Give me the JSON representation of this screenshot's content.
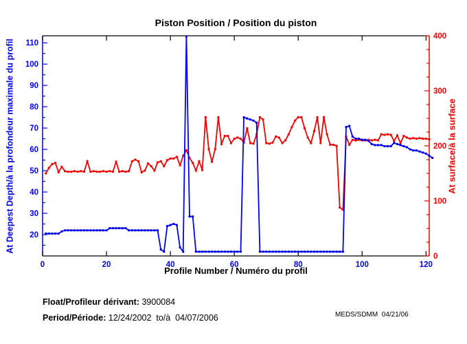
{
  "title": "Piston Position / Position du piston",
  "footer": {
    "float_label": "Float/Profileur dérivant:",
    "float_value": " 3900084",
    "period_label": "Period/Période:",
    "period_value": " 12/24/2002  to/à  04/07/2006",
    "credit": "MEDS/SDMM  04/21/06"
  },
  "chart_data": {
    "type": "line",
    "title": "Piston Position / Position du piston",
    "xlabel": "Profile Number / Numéro du profil",
    "ylabel_left": "At Deepest Depth/à la profondeur maximale du profil",
    "ylabel_right": "At surface/à la surface",
    "xlim": [
      0,
      121
    ],
    "x_ticks": [
      0,
      20,
      40,
      60,
      80,
      100,
      120
    ],
    "ylim_left": [
      10,
      113.3
    ],
    "yticks_left": [
      20,
      30,
      40,
      50,
      60,
      70,
      80,
      90,
      100,
      110
    ],
    "ylim_right": [
      0,
      400
    ],
    "yticks_right": [
      0,
      100,
      200,
      300,
      400
    ],
    "grid": false,
    "legend": "none",
    "colors": {
      "left": "#0000f0",
      "right": "#f00000",
      "frame": "#000000"
    },
    "series": [
      {
        "id": "deepest-depth",
        "name": "At Deepest Depth/à la profondeur maximale du profil",
        "axis": "left",
        "color": "#0000f0",
        "x_start": 1,
        "x_step": 1,
        "values": [
          20.5,
          20.5,
          20.5,
          20.5,
          20.5,
          21.5,
          22,
          22,
          22,
          22,
          22,
          22,
          22,
          22,
          22,
          22,
          22,
          22,
          22,
          22,
          23,
          23,
          23,
          23,
          23,
          23,
          22,
          22,
          22,
          22,
          22,
          22,
          22,
          22,
          22,
          22,
          13,
          12,
          24,
          24.5,
          25,
          24.5,
          14,
          12,
          113,
          28.5,
          28.5,
          12,
          12,
          12,
          12,
          12,
          12,
          12,
          12,
          12,
          12,
          12,
          12,
          12,
          12,
          12,
          75,
          74.5,
          74,
          73.5,
          72.5,
          12,
          12,
          12,
          12,
          12,
          12,
          12,
          12,
          12,
          12,
          12,
          12,
          12,
          12,
          12,
          12,
          12,
          12,
          12,
          12,
          12,
          12,
          12,
          12,
          12,
          12,
          12,
          70.5,
          71,
          66,
          65,
          65,
          64.5,
          64.5,
          64,
          62.5,
          62,
          62,
          62,
          61.5,
          61.5,
          61.5,
          63,
          62.5,
          62,
          61.5,
          61,
          60,
          59.5,
          59.5,
          59,
          58.5,
          58,
          57,
          56
        ]
      },
      {
        "id": "at-surface",
        "name": "At surface/à la surface",
        "axis": "right",
        "color": "#f00000",
        "x_start": 1,
        "x_step": 1,
        "values": [
          150,
          160,
          167,
          169,
          152,
          162,
          154,
          153,
          153,
          154,
          153,
          154,
          153,
          172,
          153,
          154,
          153,
          153,
          154,
          153,
          154,
          153,
          171,
          153,
          154,
          153,
          154,
          172,
          175,
          172,
          152,
          155,
          168,
          163,
          155,
          170,
          172,
          163,
          174,
          177,
          177,
          180,
          165,
          182,
          192,
          178,
          169,
          155,
          172,
          156,
          252,
          194,
          171,
          194,
          252,
          203,
          218,
          218,
          205,
          213,
          215,
          213,
          206,
          232,
          205,
          204,
          221,
          252,
          248,
          205,
          204,
          206,
          217,
          215,
          205,
          210,
          221,
          234,
          246,
          252,
          252,
          232,
          215,
          205,
          227,
          252,
          205,
          252,
          221,
          202,
          202,
          200,
          88,
          84,
          217,
          202,
          211,
          210,
          211,
          210,
          210,
          211,
          210,
          211,
          210,
          221,
          220,
          221,
          220,
          209,
          219,
          205,
          218,
          215,
          213,
          214,
          213,
          214,
          213,
          213,
          212
        ]
      }
    ]
  }
}
